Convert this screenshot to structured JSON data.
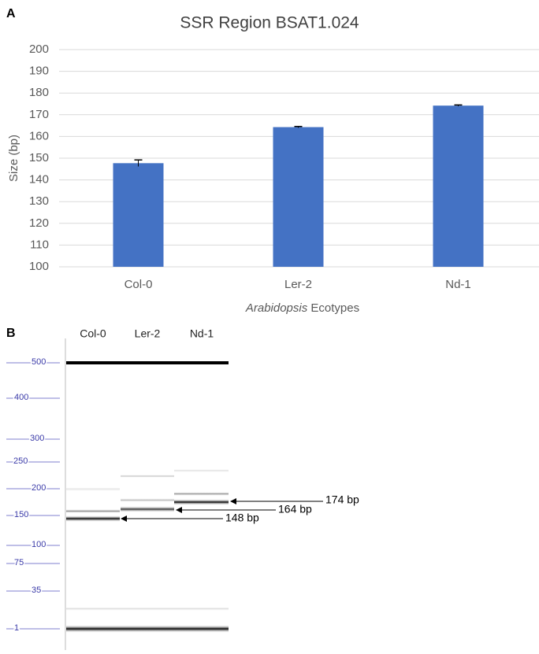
{
  "panel_labels": [
    "A",
    "B"
  ],
  "chart_data": {
    "type": "bar",
    "title": "SSR Region BSAT1.024",
    "y_label": "Size (bp)",
    "x_label": {
      "italic": "Arabidopsis",
      "text": "Ecotypes"
    },
    "categories": [
      "Col-0",
      "Ler-2",
      "Nd-1"
    ],
    "values": [
      147.7,
      164.3,
      174.2
    ],
    "errors": [
      1.5,
      0.3,
      0.3
    ],
    "color": "#4472c4",
    "ylim": [
      100,
      200
    ],
    "yticks": [
      100,
      110,
      120,
      130,
      140,
      150,
      160,
      170,
      180,
      190,
      200
    ],
    "grid": true
  },
  "gel": {
    "lanes": [
      "Col-0",
      "Ler-2",
      "Nd-1"
    ],
    "ladder": [
      500,
      400,
      300,
      250,
      200,
      150,
      100,
      75,
      35,
      1
    ],
    "annotations": [
      "174 bp",
      "164 bp",
      "148 bp"
    ]
  }
}
